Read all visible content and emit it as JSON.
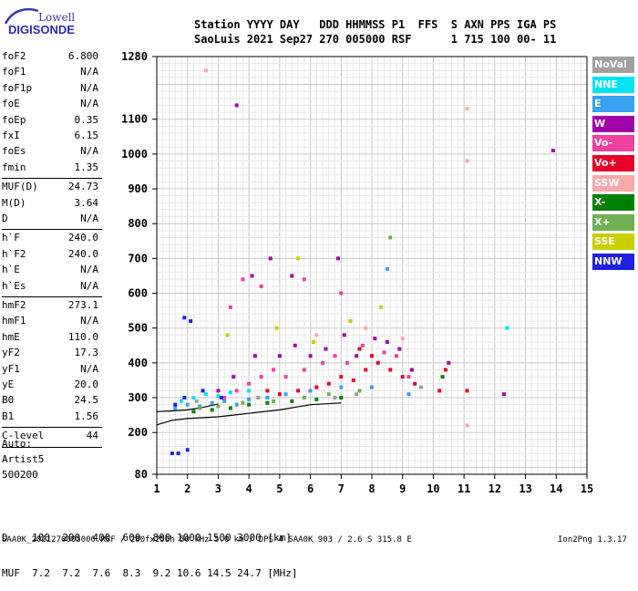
{
  "logo": {
    "line1": "Lowell",
    "line2": "DIGISONDE"
  },
  "header": {
    "row1": "Station YYYY DAY   DDD HHMMSS P1  FFS  S AXN PPS IGA PS",
    "row2": "SaoLuis 2021 Sep27 270 005000 RSF      1 715 100 00- 11"
  },
  "params_group1": [
    {
      "label": "foF2",
      "value": "6.800"
    },
    {
      "label": "foF1",
      "value": "N/A"
    },
    {
      "label": "foF1p",
      "value": "N/A"
    },
    {
      "label": "foE",
      "value": "N/A"
    },
    {
      "label": "foEp",
      "value": "0.35"
    },
    {
      "label": "fxI",
      "value": "6.15"
    },
    {
      "label": "foEs",
      "value": "N/A"
    },
    {
      "label": "fmin",
      "value": "1.35"
    }
  ],
  "params_group2": [
    {
      "label": "MUF(D)",
      "value": "24.73"
    },
    {
      "label": "M(D)",
      "value": "3.64"
    },
    {
      "label": "D",
      "value": "N/A"
    }
  ],
  "params_group3": [
    {
      "label": "h`F",
      "value": "240.0"
    },
    {
      "label": "h`F2",
      "value": "240.0"
    },
    {
      "label": "h`E",
      "value": "N/A"
    },
    {
      "label": "h`Es",
      "value": "N/A"
    }
  ],
  "params_group4": [
    {
      "label": "hmF2",
      "value": "273.1"
    },
    {
      "label": "hmF1",
      "value": "N/A"
    },
    {
      "label": "hmE",
      "value": "110.0"
    },
    {
      "label": "yF2",
      "value": "17.3"
    },
    {
      "label": "yF1",
      "value": "N/A"
    },
    {
      "label": "yE",
      "value": "20.0"
    },
    {
      "label": "B0",
      "value": "24.5"
    },
    {
      "label": "B1",
      "value": "1.56"
    }
  ],
  "params_group5": [
    {
      "label": "C-level",
      "value": "44"
    }
  ],
  "auto": {
    "line1": "Auto:",
    "line2": "Artist5",
    "line3": "500200"
  },
  "legend": [
    {
      "label": "NoVal",
      "color": "#a0a0a0"
    },
    {
      "label": "NNE",
      "color": "#00e5f0"
    },
    {
      "label": "E",
      "color": "#3aa0f0"
    },
    {
      "label": "W",
      "color": "#a000a8"
    },
    {
      "label": "Vo-",
      "color": "#f040a0"
    },
    {
      "label": "Vo+",
      "color": "#e8002a"
    },
    {
      "label": "SSW",
      "color": "#f8a8a8"
    },
    {
      "label": "X-",
      "color": "#008000"
    },
    {
      "label": "X+",
      "color": "#70b050"
    },
    {
      "label": "SSE",
      "color": "#c8d000"
    },
    {
      "label": "NNW",
      "color": "#2020e0"
    }
  ],
  "bottom_table": {
    "row1": "D    100  200  400  600  800 1000 1500 3000 [km]",
    "row2": "MUF  7.2  7.2  7.6  8.3  9.2 10.6 14.5 24.7 [MHz]"
  },
  "footer": {
    "left": "SAA0K_2021270005000.RSF / 280fx256h 50 kHz 5.0 km / DPS-4 SAA0K 903 / 2.6 S 315.8 E",
    "right": "Ion2Png 1.3.17"
  },
  "chart_data": {
    "type": "scatter",
    "title": "",
    "xlabel": "",
    "ylabel": "",
    "xlim": [
      1,
      15
    ],
    "ylim": [
      80,
      1280
    ],
    "x_ticks": [
      1,
      2,
      3,
      4,
      5,
      6,
      7,
      8,
      9,
      10,
      11,
      12,
      13,
      14,
      15
    ],
    "y_ticks": [
      80,
      200,
      300,
      400,
      500,
      600,
      700,
      800,
      900,
      1000,
      1100,
      1280
    ],
    "grid": true,
    "series": [
      {
        "name": "Vo+",
        "color": "#e8002a",
        "points": [
          [
            6.2,
            330
          ],
          [
            6.6,
            340
          ],
          [
            7.0,
            360
          ],
          [
            7.4,
            350
          ],
          [
            7.8,
            380
          ],
          [
            8.2,
            400
          ],
          [
            8.6,
            380
          ],
          [
            9.0,
            360
          ],
          [
            8.0,
            420
          ],
          [
            7.6,
            440
          ],
          [
            5.6,
            320
          ],
          [
            5.0,
            310
          ],
          [
            4.6,
            320
          ],
          [
            10.2,
            320
          ],
          [
            10.4,
            380
          ],
          [
            9.4,
            340
          ],
          [
            11.1,
            320
          ]
        ]
      },
      {
        "name": "Vo-",
        "color": "#f040a0",
        "points": [
          [
            3.2,
            300
          ],
          [
            3.6,
            320
          ],
          [
            4.0,
            340
          ],
          [
            4.4,
            360
          ],
          [
            4.8,
            380
          ],
          [
            5.2,
            360
          ],
          [
            5.8,
            380
          ],
          [
            6.4,
            400
          ],
          [
            6.8,
            420
          ],
          [
            7.2,
            400
          ],
          [
            7.7,
            450
          ],
          [
            8.4,
            430
          ],
          [
            8.8,
            420
          ],
          [
            9.2,
            360
          ],
          [
            3.8,
            640
          ],
          [
            4.4,
            620
          ],
          [
            5.8,
            640
          ],
          [
            7.0,
            600
          ],
          [
            3.4,
            560
          ]
        ]
      },
      {
        "name": "W",
        "color": "#a000a8",
        "points": [
          [
            3.0,
            320
          ],
          [
            3.5,
            360
          ],
          [
            4.2,
            420
          ],
          [
            5.0,
            420
          ],
          [
            5.5,
            450
          ],
          [
            6.0,
            420
          ],
          [
            6.5,
            440
          ],
          [
            7.1,
            480
          ],
          [
            7.5,
            420
          ],
          [
            8.1,
            470
          ],
          [
            8.5,
            460
          ],
          [
            8.9,
            440
          ],
          [
            9.3,
            380
          ],
          [
            3.6,
            1140
          ],
          [
            4.1,
            650
          ],
          [
            4.7,
            700
          ],
          [
            5.4,
            650
          ],
          [
            6.9,
            700
          ],
          [
            13.9,
            1010
          ],
          [
            10.5,
            400
          ],
          [
            12.3,
            310
          ]
        ]
      },
      {
        "name": "E",
        "color": "#3aa0f0",
        "points": [
          [
            1.6,
            270
          ],
          [
            2.0,
            280
          ],
          [
            2.4,
            275
          ],
          [
            2.8,
            285
          ],
          [
            3.2,
            290
          ],
          [
            3.6,
            280
          ],
          [
            4.0,
            295
          ],
          [
            4.6,
            300
          ],
          [
            5.2,
            310
          ],
          [
            6.0,
            320
          ],
          [
            7.0,
            330
          ],
          [
            8.0,
            330
          ],
          [
            8.5,
            670
          ],
          [
            9.2,
            310
          ]
        ]
      },
      {
        "name": "NNE",
        "color": "#00e5f0",
        "points": [
          [
            1.8,
            290
          ],
          [
            2.2,
            300
          ],
          [
            2.6,
            310
          ],
          [
            3.0,
            305
          ],
          [
            3.4,
            315
          ],
          [
            4.0,
            320
          ],
          [
            12.4,
            500
          ]
        ]
      },
      {
        "name": "X-",
        "color": "#008000",
        "points": [
          [
            2.2,
            260
          ],
          [
            2.8,
            265
          ],
          [
            3.4,
            270
          ],
          [
            4.0,
            280
          ],
          [
            4.6,
            285
          ],
          [
            5.4,
            290
          ],
          [
            6.2,
            295
          ],
          [
            7.0,
            300
          ],
          [
            10.3,
            360
          ]
        ]
      },
      {
        "name": "X+",
        "color": "#70b050",
        "points": [
          [
            2.4,
            270
          ],
          [
            3.0,
            275
          ],
          [
            3.8,
            285
          ],
          [
            4.8,
            290
          ],
          [
            5.8,
            300
          ],
          [
            6.6,
            310
          ],
          [
            7.6,
            320
          ],
          [
            8.6,
            760
          ]
        ]
      },
      {
        "name": "SSE",
        "color": "#c8d000",
        "points": [
          [
            3.3,
            480
          ],
          [
            4.9,
            500
          ],
          [
            6.1,
            460
          ],
          [
            7.3,
            520
          ],
          [
            8.3,
            560
          ],
          [
            5.6,
            700
          ]
        ]
      },
      {
        "name": "SSW",
        "color": "#f8a8a8",
        "points": [
          [
            2.6,
            1240
          ],
          [
            6.2,
            480
          ],
          [
            7.8,
            500
          ],
          [
            9.0,
            470
          ],
          [
            11.1,
            980
          ],
          [
            11.1,
            220
          ],
          [
            11.1,
            1130
          ]
        ]
      },
      {
        "name": "NNW",
        "color": "#2020e0",
        "points": [
          [
            1.6,
            280
          ],
          [
            1.9,
            300
          ],
          [
            1.5,
            140
          ],
          [
            1.7,
            140
          ],
          [
            2.0,
            150
          ],
          [
            1.9,
            530
          ],
          [
            2.1,
            520
          ],
          [
            2.5,
            320
          ],
          [
            3.1,
            300
          ]
        ]
      },
      {
        "name": "NoVal",
        "color": "#a0a0a0",
        "points": [
          [
            6.8,
            300
          ],
          [
            7.5,
            310
          ],
          [
            9.6,
            330
          ],
          [
            2.3,
            290
          ],
          [
            4.3,
            300
          ]
        ]
      }
    ],
    "trace_lines": [
      {
        "label": "",
        "points": [
          [
            1.0,
            222
          ],
          [
            1.5,
            235
          ],
          [
            2.0,
            240
          ],
          [
            3.0,
            245
          ],
          [
            4.0,
            255
          ],
          [
            5.0,
            265
          ],
          [
            6.0,
            280
          ],
          [
            7.0,
            285
          ]
        ]
      },
      {
        "label": "",
        "points": [
          [
            1.0,
            260
          ],
          [
            1.5,
            262
          ],
          [
            2.0,
            265
          ],
          [
            2.5,
            272
          ],
          [
            3.0,
            282
          ]
        ]
      }
    ]
  }
}
